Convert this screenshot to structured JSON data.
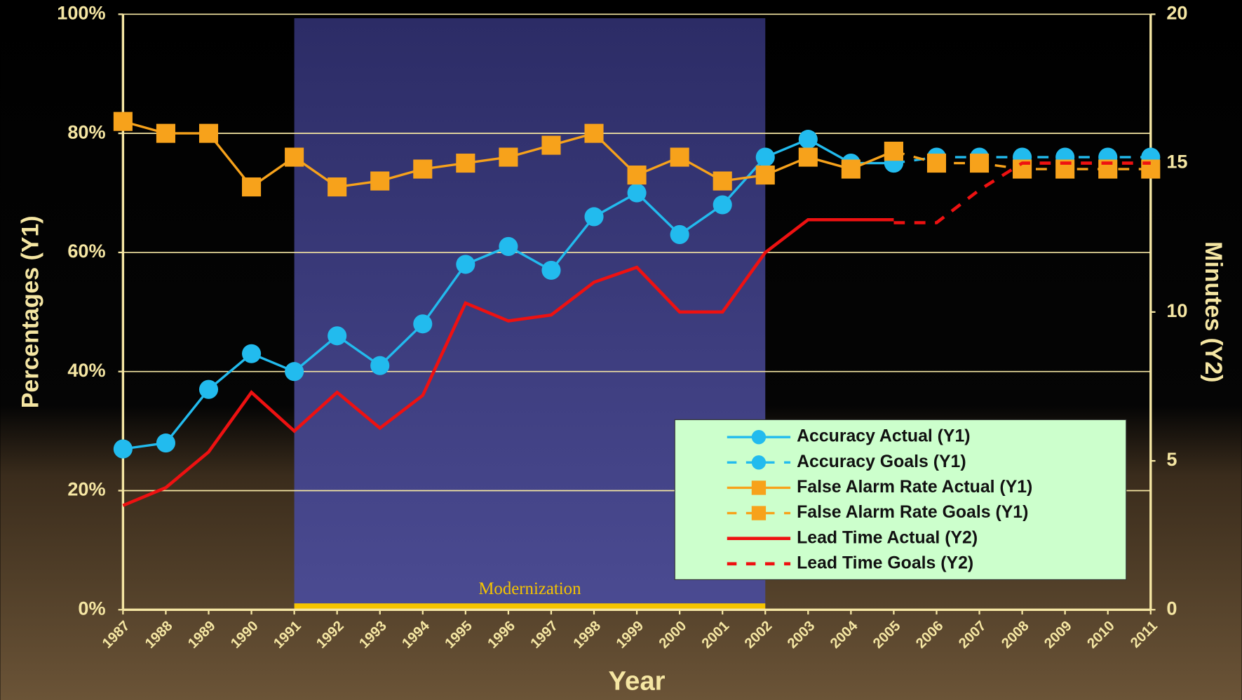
{
  "chart_data": {
    "type": "line",
    "x": [
      1987,
      1988,
      1989,
      1990,
      1991,
      1992,
      1993,
      1994,
      1995,
      1996,
      1997,
      1998,
      1999,
      2000,
      2001,
      2002,
      2003,
      2004,
      2005,
      2006,
      2007,
      2008,
      2009,
      2010,
      2011
    ],
    "xlim": [
      1987,
      2011
    ],
    "ylabel": "Percentages (Y1)",
    "y2label": "Minutes (Y2)",
    "xlabel": "Year",
    "ylim": [
      0,
      100
    ],
    "yticks": [
      {
        "value": 0,
        "label": "0%"
      },
      {
        "value": 20,
        "label": "20%"
      },
      {
        "value": 40,
        "label": "40%"
      },
      {
        "value": 60,
        "label": "60%"
      },
      {
        "value": 80,
        "label": "80%"
      },
      {
        "value": 100,
        "label": "100%"
      }
    ],
    "y2lim": [
      0,
      20
    ],
    "y2ticks": [
      0,
      5,
      10,
      15,
      20
    ],
    "grid": true,
    "legend": "lower-right",
    "band": {
      "label": "Modernization",
      "start": 1991,
      "end": 2002,
      "color": "#3a3a80"
    },
    "series": [
      {
        "name": "Accuracy Actual (Y1)",
        "color": "#22bbee",
        "marker": "circle",
        "dash": false,
        "values": [
          27,
          28,
          37,
          43,
          40,
          46,
          41,
          48,
          58,
          61,
          57,
          66,
          70,
          63,
          68,
          76,
          79,
          75,
          75,
          null,
          null,
          null,
          null,
          null,
          null
        ]
      },
      {
        "name": "Accuracy Goals (Y1)",
        "color": "#22bbee",
        "marker": "circle",
        "dash": true,
        "values": [
          null,
          null,
          null,
          null,
          null,
          null,
          null,
          null,
          null,
          null,
          null,
          null,
          null,
          null,
          null,
          null,
          null,
          null,
          75,
          76,
          76,
          76,
          76,
          76,
          76
        ]
      },
      {
        "name": "False Alarm Rate Actual (Y1)",
        "color": "#f7a21b",
        "marker": "square",
        "dash": false,
        "values": [
          82,
          80,
          80,
          71,
          76,
          71,
          72,
          74,
          75,
          76,
          78,
          80,
          73,
          76,
          72,
          73,
          76,
          74,
          77,
          null,
          null,
          null,
          null,
          null,
          null
        ]
      },
      {
        "name": "False Alarm Rate Goals (Y1)",
        "color": "#f7a21b",
        "marker": "square",
        "dash": true,
        "values": [
          null,
          null,
          null,
          null,
          null,
          null,
          null,
          null,
          null,
          null,
          null,
          null,
          null,
          null,
          null,
          null,
          null,
          null,
          77,
          75,
          75,
          74,
          74,
          74,
          74
        ]
      },
      {
        "name": "Lead Time Actual (Y2)",
        "color": "#ee1111",
        "marker": "none",
        "dash": false,
        "axis": "y2",
        "values": [
          3.5,
          4.1,
          5.3,
          7.3,
          6.0,
          7.3,
          6.1,
          7.2,
          10.3,
          9.7,
          9.9,
          11.0,
          11.5,
          10.0,
          10.0,
          12.0,
          13.1,
          13.1,
          13.1,
          null,
          null,
          null,
          null,
          null,
          null
        ]
      },
      {
        "name": "Lead Time Goals (Y2)",
        "color": "#ee1111",
        "marker": "none",
        "dash": true,
        "axis": "y2",
        "values": [
          null,
          null,
          null,
          null,
          null,
          null,
          null,
          null,
          null,
          null,
          null,
          null,
          null,
          null,
          null,
          null,
          null,
          null,
          13,
          13,
          14.1,
          15,
          15,
          15,
          15
        ]
      }
    ]
  }
}
